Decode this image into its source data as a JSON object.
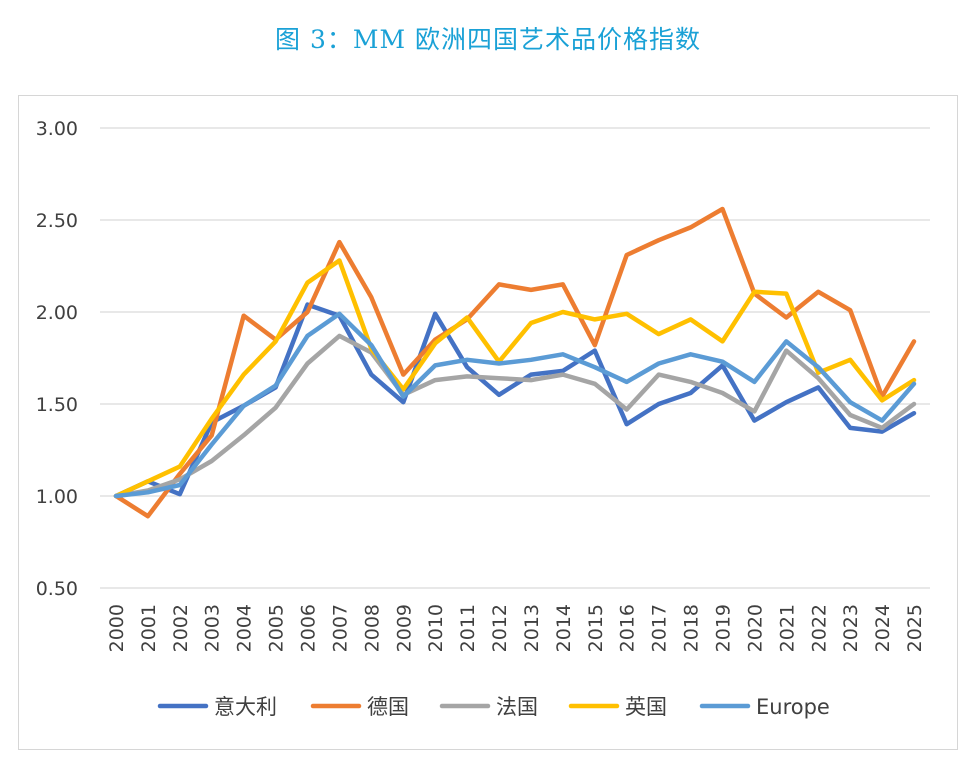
{
  "title": "图 3：MM 欧洲四国艺术品价格指数",
  "chart_data": {
    "type": "line",
    "title": "图 3：MM 欧洲四国艺术品价格指数",
    "xlabel": "",
    "ylabel": "",
    "ylim": [
      0.5,
      3.0
    ],
    "yticks": [
      "0.50",
      "1.00",
      "1.50",
      "2.00",
      "2.50",
      "3.00"
    ],
    "grid": true,
    "legend_position": "bottom",
    "categories": [
      "2000",
      "2001",
      "2002",
      "2003",
      "2004",
      "2005",
      "2006",
      "2007",
      "2008",
      "2009",
      "2010",
      "2011",
      "2012",
      "2013",
      "2014",
      "2015",
      "2016",
      "2017",
      "2018",
      "2019",
      "2020",
      "2021",
      "2022",
      "2023",
      "2024",
      "2025"
    ],
    "series": [
      {
        "name": "意大利",
        "color": "#4472c4",
        "values": [
          1.0,
          1.08,
          1.01,
          1.4,
          1.49,
          1.59,
          2.04,
          1.98,
          1.66,
          1.51,
          1.99,
          1.7,
          1.55,
          1.66,
          1.68,
          1.79,
          1.39,
          1.5,
          1.56,
          1.71,
          1.41,
          1.51,
          1.59,
          1.37,
          1.35,
          1.45
        ]
      },
      {
        "name": "德国",
        "color": "#ed7d31",
        "values": [
          1.0,
          0.89,
          1.12,
          1.33,
          1.98,
          1.85,
          2.0,
          2.38,
          2.08,
          1.66,
          1.85,
          1.96,
          2.15,
          2.12,
          2.15,
          1.82,
          2.31,
          2.39,
          2.46,
          2.56,
          2.1,
          1.97,
          2.11,
          2.01,
          1.54,
          1.84
        ]
      },
      {
        "name": "法国",
        "color": "#a5a5a5",
        "values": [
          1.0,
          1.03,
          1.09,
          1.19,
          1.33,
          1.48,
          1.72,
          1.87,
          1.78,
          1.55,
          1.63,
          1.65,
          1.64,
          1.63,
          1.66,
          1.61,
          1.47,
          1.66,
          1.62,
          1.56,
          1.46,
          1.79,
          1.64,
          1.44,
          1.37,
          1.5
        ]
      },
      {
        "name": "英国",
        "color": "#ffc000",
        "values": [
          1.0,
          1.08,
          1.16,
          1.42,
          1.66,
          1.84,
          2.16,
          2.28,
          1.8,
          1.58,
          1.83,
          1.97,
          1.73,
          1.94,
          2.0,
          1.96,
          1.99,
          1.88,
          1.96,
          1.84,
          2.11,
          2.1,
          1.67,
          1.74,
          1.52,
          1.63
        ]
      },
      {
        "name": "Europe",
        "color": "#5b9bd5",
        "values": [
          1.0,
          1.02,
          1.06,
          1.28,
          1.49,
          1.6,
          1.87,
          1.99,
          1.82,
          1.54,
          1.71,
          1.74,
          1.72,
          1.74,
          1.77,
          1.7,
          1.62,
          1.72,
          1.77,
          1.73,
          1.62,
          1.84,
          1.7,
          1.51,
          1.41,
          1.61
        ]
      }
    ]
  }
}
